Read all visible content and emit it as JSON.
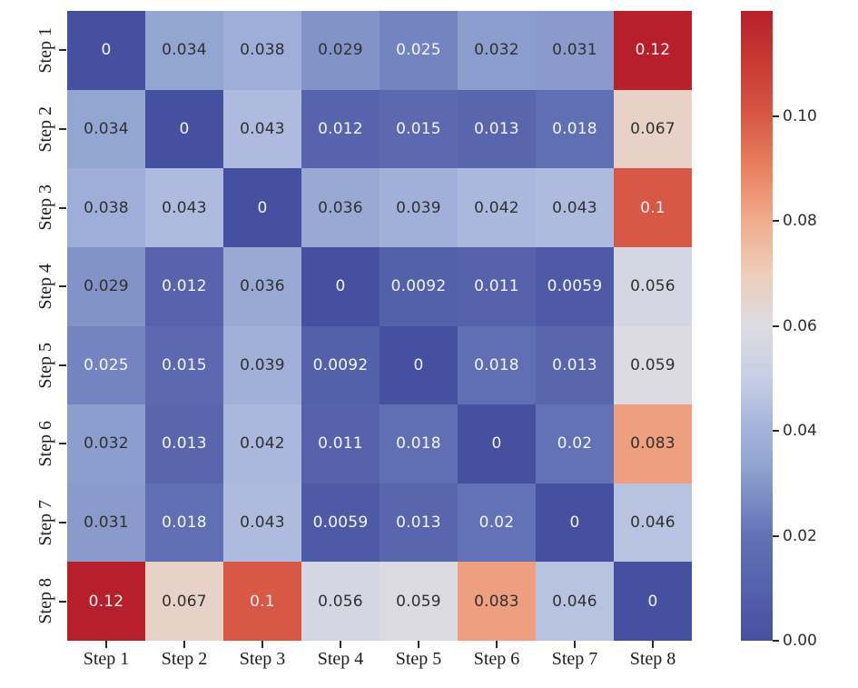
{
  "figure": {
    "background": "#ffffff",
    "axis_tick_color": "#2a2a2a",
    "axis_label_color": "#1c1c1c"
  },
  "chart_data": {
    "type": "heatmap",
    "title": "",
    "x_categories": [
      "Step 1",
      "Step 2",
      "Step 3",
      "Step 4",
      "Step 5",
      "Step 6",
      "Step 7",
      "Step 8"
    ],
    "y_categories": [
      "Step 1",
      "Step 2",
      "Step 3",
      "Step 4",
      "Step 5",
      "Step 6",
      "Step 7",
      "Step 8"
    ],
    "matrix": [
      [
        0,
        0.034,
        0.038,
        0.029,
        0.025,
        0.032,
        0.031,
        0.12
      ],
      [
        0.034,
        0,
        0.043,
        0.012,
        0.015,
        0.013,
        0.018,
        0.067
      ],
      [
        0.038,
        0.043,
        0,
        0.036,
        0.039,
        0.042,
        0.043,
        0.1
      ],
      [
        0.029,
        0.012,
        0.036,
        0,
        0.0092,
        0.011,
        0.0059,
        0.056
      ],
      [
        0.025,
        0.015,
        0.039,
        0.0092,
        0,
        0.018,
        0.013,
        0.059
      ],
      [
        0.032,
        0.013,
        0.042,
        0.011,
        0.018,
        0,
        0.02,
        0.083
      ],
      [
        0.031,
        0.018,
        0.043,
        0.0059,
        0.013,
        0.02,
        0,
        0.046
      ],
      [
        0.12,
        0.067,
        0.1,
        0.056,
        0.059,
        0.083,
        0.046,
        0
      ]
    ],
    "annotated": true,
    "vmin": 0,
    "vmax": 0.12,
    "grid": false,
    "legend": false,
    "colormap": {
      "name": "coolwarm",
      "stops": [
        [
          0.0,
          "#4650A0"
        ],
        [
          0.167,
          "#6372B6"
        ],
        [
          0.283,
          "#93A5D1"
        ],
        [
          0.333,
          "#A3B2DB"
        ],
        [
          0.417,
          "#C6CFE5"
        ],
        [
          0.5,
          "#DDDCE1"
        ],
        [
          0.583,
          "#EDCDBA"
        ],
        [
          0.667,
          "#F0AC8D"
        ],
        [
          0.75,
          "#E8815F"
        ],
        [
          0.833,
          "#D75844"
        ],
        [
          0.917,
          "#C83A33"
        ],
        [
          1.0,
          "#B71F2B"
        ]
      ]
    },
    "annotation_colors": {
      "light": "#f4f4f7",
      "dark": "#303030",
      "luminance_threshold": 0.27
    },
    "colorbar": {
      "position": "right",
      "ticks": [
        {
          "value": 0.0,
          "label": "0.00"
        },
        {
          "value": 0.02,
          "label": "0.02"
        },
        {
          "value": 0.04,
          "label": "0.04"
        },
        {
          "value": 0.06,
          "label": "0.06"
        },
        {
          "value": 0.08,
          "label": "0.08"
        },
        {
          "value": 0.1,
          "label": "0.10"
        }
      ]
    }
  }
}
